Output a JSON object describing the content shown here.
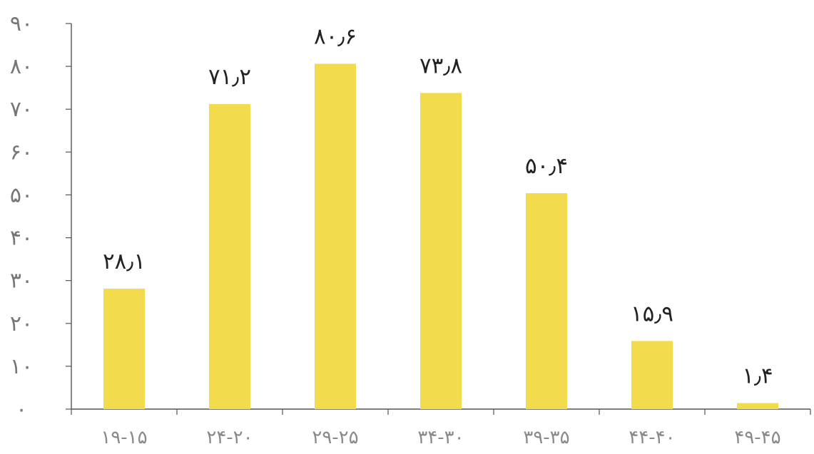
{
  "chart_data": {
    "type": "bar",
    "categories": [
      "۱۹-۱۵",
      "۲۴-۲۰",
      "۲۹-۲۵",
      "۳۴-۳۰",
      "۳۹-۳۵",
      "۴۴-۴۰",
      "۴۹-۴۵"
    ],
    "values": [
      28.1,
      71.2,
      80.6,
      73.8,
      50.4,
      15.9,
      1.4
    ],
    "data_labels": [
      "۲۸٫۱",
      "۷۱٫۲",
      "۸۰٫۶",
      "۷۳٫۸",
      "۵۰٫۴",
      "۱۵٫۹",
      "۱٫۴"
    ],
    "y_ticks": [
      0,
      10,
      20,
      30,
      40,
      50,
      60,
      70,
      80,
      90
    ],
    "y_tick_labels": [
      "۰",
      "۱۰",
      "۲۰",
      "۳۰",
      "۴۰",
      "۵۰",
      "۶۰",
      "۷۰",
      "۸۰",
      "۹۰"
    ],
    "ylim": [
      0,
      90
    ],
    "grid": false,
    "legend": "none",
    "bar_color": "#f2dc4e",
    "axis_color": "#555555",
    "tick_label_color": "#777777",
    "data_label_color": "#222222"
  }
}
